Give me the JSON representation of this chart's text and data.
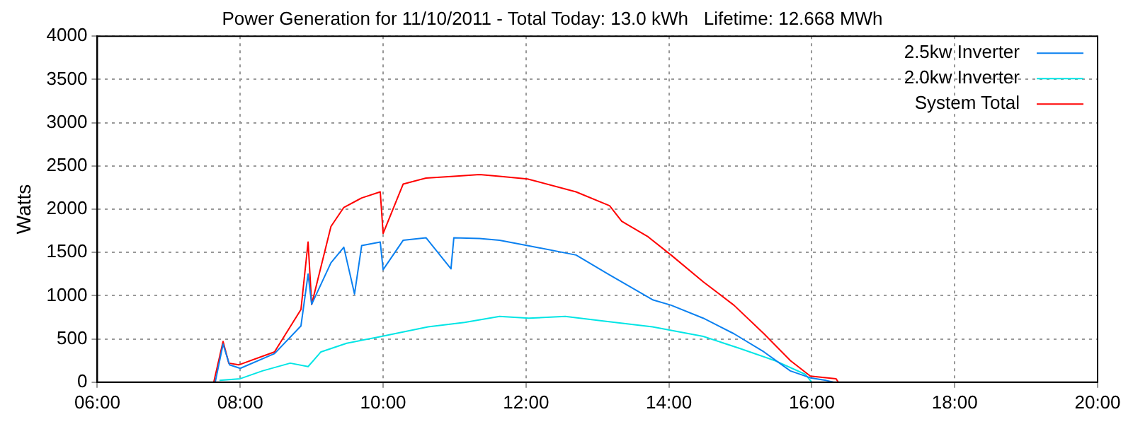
{
  "chart_data": {
    "type": "line",
    "title": "Power Generation for 11/10/2011 - Total Today: 13.0 kWh   Lifetime: 12.668 MWh",
    "ylabel": "Watts",
    "xlim": [
      6,
      20
    ],
    "xticks": [
      {
        "value": 6,
        "label": "06:00"
      },
      {
        "value": 8,
        "label": "08:00"
      },
      {
        "value": 10,
        "label": "10:00"
      },
      {
        "value": 12,
        "label": "12:00"
      },
      {
        "value": 14,
        "label": "14:00"
      },
      {
        "value": 16,
        "label": "16:00"
      },
      {
        "value": 18,
        "label": "18:00"
      },
      {
        "value": 20,
        "label": "20:00"
      }
    ],
    "ylim": [
      0,
      4000
    ],
    "yticks": [
      0,
      500,
      1000,
      1500,
      2000,
      2500,
      3000,
      3500,
      4000
    ],
    "grid": true,
    "legend": "top right",
    "marker": "none",
    "line_style": "solid",
    "series": [
      {
        "name": "2.5kw Inverter",
        "color": "#0a80f0",
        "x": [
          7.65,
          7.76,
          7.85,
          8.0,
          8.48,
          8.85,
          8.95,
          9.0,
          9.27,
          9.45,
          9.6,
          9.7,
          9.96,
          10.0,
          10.28,
          10.6,
          10.95,
          10.99,
          11.35,
          11.63,
          12.02,
          12.7,
          13.15,
          13.78,
          14.03,
          14.48,
          14.91,
          15.33,
          15.7,
          15.98,
          16.2,
          16.3
        ],
        "values": [
          0,
          440,
          200,
          160,
          330,
          650,
          1250,
          900,
          1380,
          1560,
          1020,
          1580,
          1620,
          1300,
          1640,
          1670,
          1310,
          1670,
          1660,
          1640,
          1580,
          1470,
          1250,
          950,
          890,
          740,
          560,
          350,
          130,
          50,
          20,
          0
        ]
      },
      {
        "name": "2.0kw Inverter",
        "color": "#00e5e5",
        "x": [
          7.71,
          8.0,
          8.31,
          8.7,
          8.95,
          9.13,
          9.49,
          9.92,
          10.28,
          10.63,
          11.14,
          11.63,
          12.04,
          12.55,
          13.06,
          13.77,
          14.48,
          14.99,
          15.48,
          15.91,
          16.0
        ],
        "values": [
          20,
          40,
          130,
          220,
          180,
          350,
          450,
          520,
          580,
          640,
          690,
          760,
          740,
          760,
          710,
          640,
          530,
          390,
          250,
          90,
          0
        ]
      },
      {
        "name": "System Total",
        "color": "#ff0000",
        "x": [
          7.63,
          7.76,
          7.84,
          7.98,
          8.48,
          8.85,
          8.95,
          9.0,
          9.27,
          9.45,
          9.7,
          9.96,
          10.0,
          10.28,
          10.6,
          10.99,
          11.35,
          11.63,
          12.02,
          12.7,
          13.17,
          13.34,
          13.71,
          14.03,
          14.48,
          14.91,
          15.33,
          15.7,
          15.98,
          16.34,
          16.37
        ],
        "values": [
          0,
          470,
          220,
          200,
          350,
          840,
          1620,
          900,
          1800,
          2020,
          2130,
          2200,
          1720,
          2290,
          2360,
          2380,
          2400,
          2380,
          2350,
          2200,
          2040,
          1860,
          1680,
          1470,
          1160,
          890,
          560,
          250,
          70,
          40,
          0
        ]
      }
    ]
  }
}
